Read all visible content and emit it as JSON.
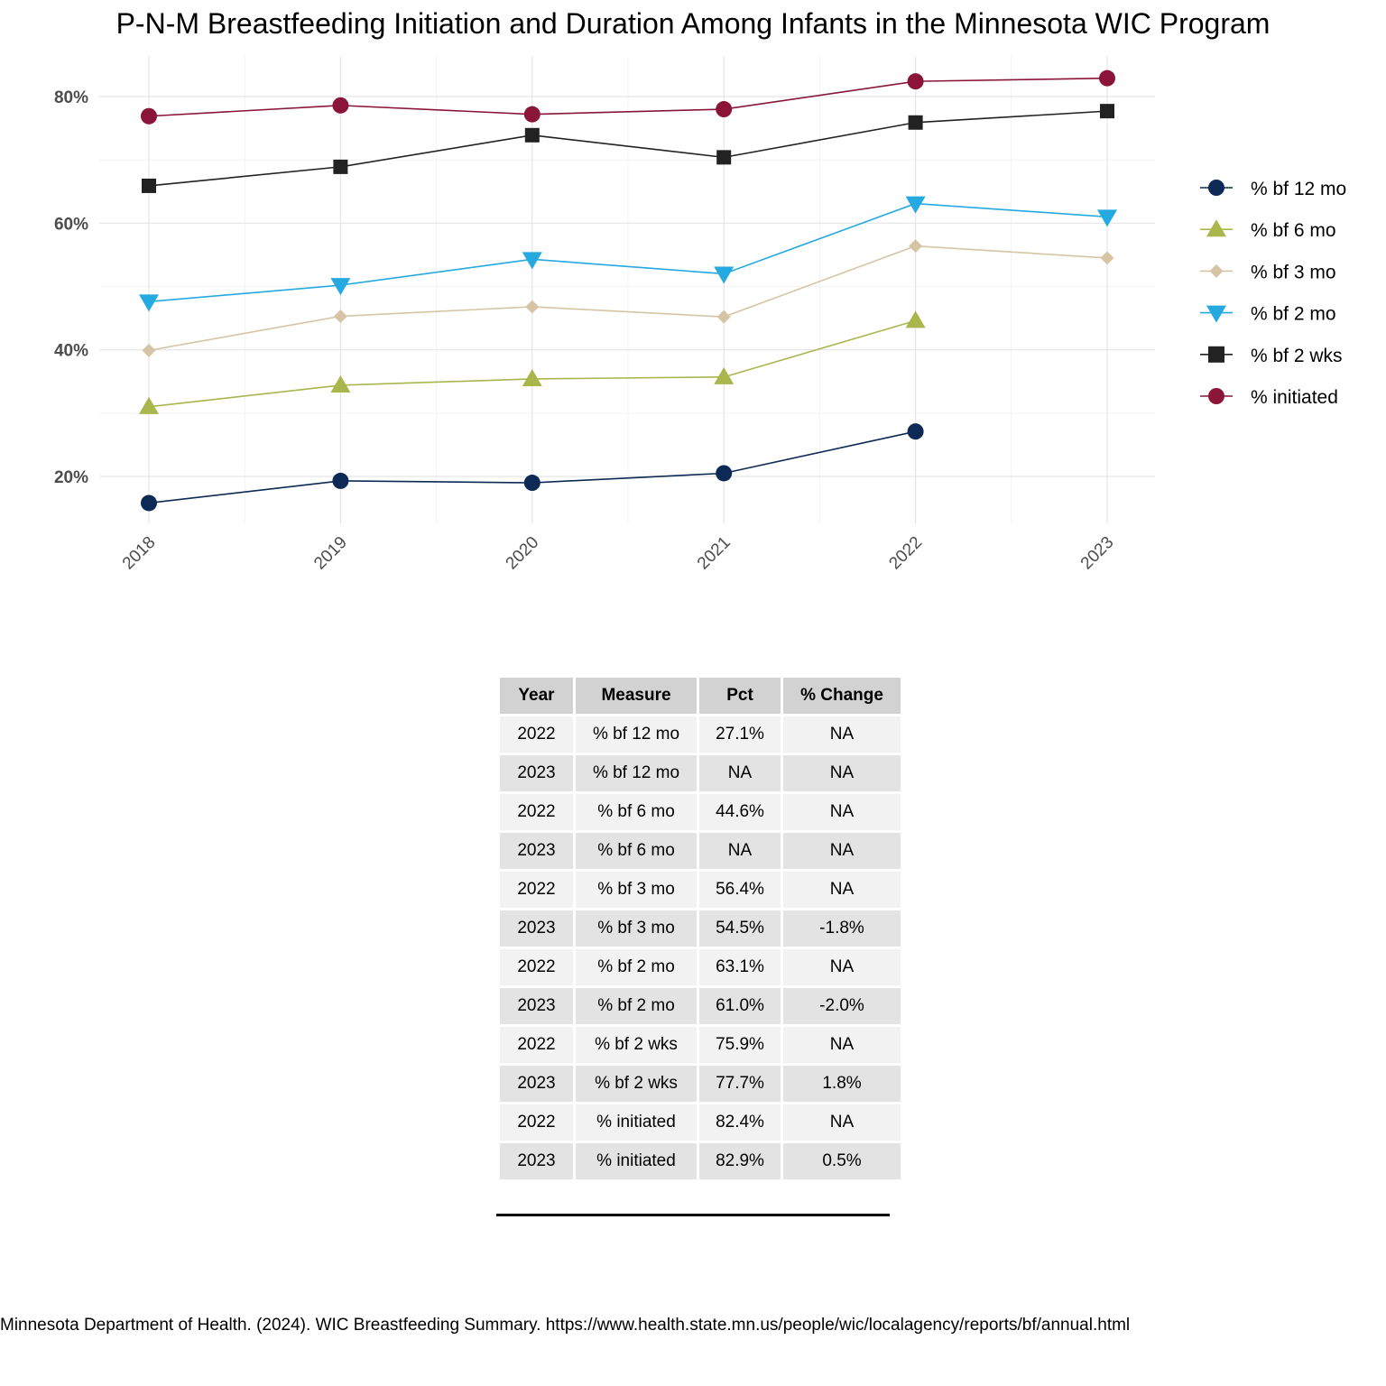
{
  "chart_data": {
    "type": "line",
    "title": "P-N-M Breastfeeding Initiation and Duration Among Infants in the Minnesota WIC Program",
    "xlabel": "",
    "ylabel": "",
    "x": [
      "2018",
      "2019",
      "2020",
      "2021",
      "2022",
      "2023"
    ],
    "ylim": [
      12,
      86
    ],
    "yticks": [
      20,
      40,
      60,
      80
    ],
    "ytick_labels": [
      "20%",
      "40%",
      "60%",
      "80%"
    ],
    "grid": true,
    "legend_position": "right",
    "series": [
      {
        "name": "% bf 12 mo",
        "color": "#0c2a55",
        "shape": "circle",
        "values": [
          15.8,
          19.3,
          19.0,
          20.5,
          27.1,
          null
        ]
      },
      {
        "name": "% bf 6 mo",
        "color": "#a9b64c",
        "shape": "triangle-up",
        "values": [
          31.0,
          34.4,
          35.4,
          35.7,
          44.6,
          null
        ]
      },
      {
        "name": "% bf 3 mo",
        "color": "#d6c4a5",
        "shape": "diamond",
        "values": [
          39.9,
          45.3,
          46.8,
          45.2,
          56.4,
          54.5
        ]
      },
      {
        "name": "% bf 2 mo",
        "color": "#24a9e1",
        "shape": "triangle-down",
        "values": [
          47.6,
          50.2,
          54.3,
          52.0,
          63.1,
          61.0
        ]
      },
      {
        "name": "% bf 2 wks",
        "color": "#222222",
        "shape": "square",
        "values": [
          65.9,
          68.9,
          73.9,
          70.4,
          75.9,
          77.7
        ]
      },
      {
        "name": "% initiated",
        "color": "#8a1538",
        "shape": "circle",
        "values": [
          76.9,
          78.6,
          77.2,
          78.0,
          82.4,
          82.9
        ]
      }
    ]
  },
  "table": {
    "headers": [
      "Year",
      "Measure",
      "Pct",
      "% Change"
    ],
    "rows": [
      [
        "2022",
        "% bf 12 mo",
        "27.1%",
        "NA"
      ],
      [
        "2023",
        "% bf 12 mo",
        "NA",
        "NA"
      ],
      [
        "2022",
        "% bf 6 mo",
        "44.6%",
        "NA"
      ],
      [
        "2023",
        "% bf 6 mo",
        "NA",
        "NA"
      ],
      [
        "2022",
        "% bf 3 mo",
        "56.4%",
        "NA"
      ],
      [
        "2023",
        "% bf 3 mo",
        "54.5%",
        "-1.8%"
      ],
      [
        "2022",
        "% bf 2 mo",
        "63.1%",
        "NA"
      ],
      [
        "2023",
        "% bf 2 mo",
        "61.0%",
        "-2.0%"
      ],
      [
        "2022",
        "% bf 2 wks",
        "75.9%",
        "NA"
      ],
      [
        "2023",
        "% bf 2 wks",
        "77.7%",
        "1.8%"
      ],
      [
        "2022",
        "% initiated",
        "82.4%",
        "NA"
      ],
      [
        "2023",
        "% initiated",
        "82.9%",
        "0.5%"
      ]
    ]
  },
  "source": "Minnesota Department of Health. (2024). WIC Breastfeeding Summary. https://www.health.state.mn.us/people/wic/localagency/reports/bf/annual.html"
}
